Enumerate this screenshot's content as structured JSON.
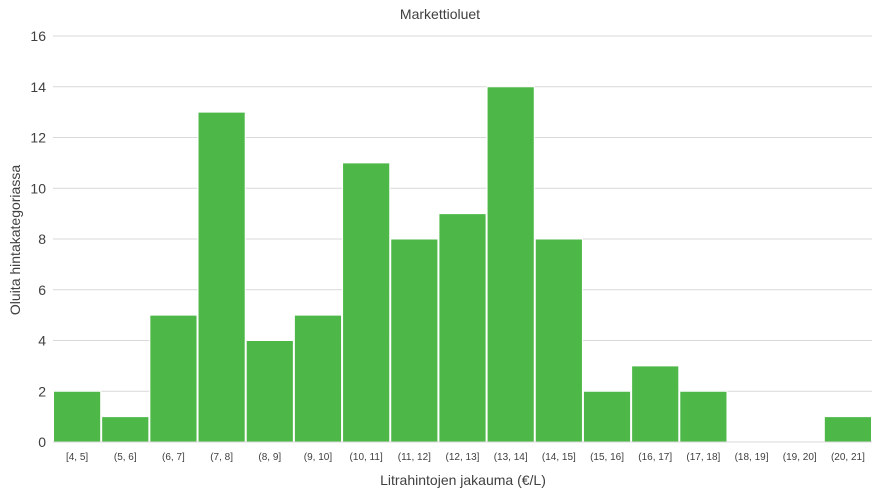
{
  "chart_data": {
    "type": "bar",
    "title": "Markettioluet",
    "xlabel": "Litrahintojen jakauma (€/L)",
    "ylabel": "Oluita hintakategoriassa",
    "categories": [
      "[4, 5]",
      "(5, 6]",
      "(6, 7]",
      "(7, 8]",
      "(8, 9]",
      "(9, 10]",
      "(10, 11]",
      "(11, 12]",
      "(12, 13]",
      "(13, 14]",
      "(14, 15]",
      "(15, 16]",
      "(16, 17]",
      "(17, 18]",
      "(18, 19]",
      "(19, 20]",
      "(20, 21]"
    ],
    "values": [
      2,
      1,
      5,
      13,
      4,
      5,
      11,
      8,
      9,
      14,
      8,
      2,
      3,
      2,
      0,
      0,
      1
    ],
    "ylim": [
      0,
      16
    ],
    "yticks": [
      0,
      2,
      4,
      6,
      8,
      10,
      12,
      14,
      16
    ],
    "grid": true,
    "bar_color": "#4db848",
    "grid_color": "#d9d9d9"
  }
}
